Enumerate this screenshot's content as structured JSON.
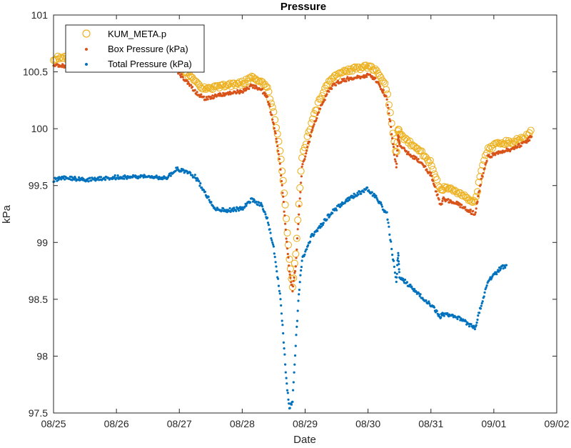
{
  "chart_data": {
    "type": "scatter",
    "title": "Pressure",
    "xlabel": "Date",
    "ylabel": "kPa",
    "x_ticks": [
      "08/25",
      "08/26",
      "08/27",
      "08/28",
      "08/29",
      "08/30",
      "08/31",
      "09/01",
      "09/02"
    ],
    "y_ticks": [
      "97.5",
      "98",
      "98.5",
      "99",
      "99.5",
      "100",
      "100.5",
      "101"
    ],
    "xlim": [
      "08/25 00:00",
      "09/02 00:00"
    ],
    "ylim": [
      97.5,
      101
    ],
    "grid": false,
    "legend_position": "top-left",
    "series": [
      {
        "name": "KUM_META.p",
        "marker": "open-circle",
        "color": "#EDB120",
        "x": [
          "08/25 00:00",
          "08/25 04:48",
          "08/25 12:00",
          "08/25 21:36",
          "08/26 07:12",
          "08/26 13:12",
          "08/26 19:12",
          "08/26 22:48",
          "08/27 02:24",
          "08/27 06:00",
          "08/27 09:36",
          "08/27 13:12",
          "08/27 18:00",
          "08/28 00:00",
          "08/28 03:36",
          "08/28 07:12",
          "08/28 09:36",
          "08/28 12:00",
          "08/28 14:24",
          "08/28 15:36",
          "08/28 16:48",
          "08/28 18:00",
          "08/28 19:12",
          "08/28 20:24",
          "08/28 21:36",
          "08/28 22:48",
          "08/29 02:24",
          "08/29 06:00",
          "08/29 09:36",
          "08/29 14:24",
          "08/29 19:12",
          "08/30 00:00",
          "08/30 03:36",
          "08/30 07:12",
          "08/30 10:48",
          "08/30 11:31",
          "08/30 12:00",
          "08/30 14:24",
          "08/30 19:12",
          "08/31 00:00",
          "08/31 03:36",
          "08/31 04:48",
          "08/31 09:36",
          "08/31 14:24",
          "08/31 16:48",
          "08/31 19:12",
          "08/31 21:36",
          "09/01 02:24",
          "09/01 07:12",
          "09/01 12:00",
          "09/01 14:24"
        ],
        "y": [
          100.62,
          100.62,
          100.6,
          100.6,
          100.6,
          100.58,
          100.6,
          100.58,
          100.5,
          100.42,
          100.35,
          100.36,
          100.38,
          100.4,
          100.45,
          100.42,
          100.35,
          100.15,
          99.8,
          99.55,
          99.2,
          98.85,
          98.6,
          98.9,
          99.35,
          99.75,
          100.05,
          100.28,
          100.43,
          100.5,
          100.53,
          100.55,
          100.5,
          100.35,
          99.75,
          100.02,
          99.95,
          99.9,
          99.82,
          99.7,
          99.45,
          99.48,
          99.45,
          99.38,
          99.35,
          99.62,
          99.82,
          99.88,
          99.88,
          99.93,
          99.98
        ]
      },
      {
        "name": "Box Pressure (kPa)",
        "marker": "dot",
        "color": "#D95319",
        "x": [
          "08/25 00:00",
          "08/25 04:48",
          "08/25 12:00",
          "08/25 21:36",
          "08/26 07:12",
          "08/26 13:12",
          "08/26 19:12",
          "08/26 22:48",
          "08/27 02:24",
          "08/27 06:00",
          "08/27 09:36",
          "08/27 13:12",
          "08/27 18:00",
          "08/28 00:00",
          "08/28 03:36",
          "08/28 07:12",
          "08/28 09:36",
          "08/28 12:00",
          "08/28 14:24",
          "08/28 15:36",
          "08/28 16:48",
          "08/28 18:00",
          "08/28 19:12",
          "08/28 20:24",
          "08/28 21:36",
          "08/28 22:48",
          "08/29 02:24",
          "08/29 06:00",
          "08/29 09:36",
          "08/29 14:24",
          "08/29 19:12",
          "08/30 00:00",
          "08/30 03:36",
          "08/30 07:12",
          "08/30 10:48",
          "08/30 11:31",
          "08/30 12:00",
          "08/30 14:24",
          "08/30 19:12",
          "08/31 00:00",
          "08/31 03:36",
          "08/31 04:48",
          "08/31 09:36",
          "08/31 14:24",
          "08/31 16:48",
          "08/31 19:12",
          "08/31 21:36",
          "09/01 02:24",
          "09/01 07:12",
          "09/01 12:00",
          "09/01 14:24"
        ],
        "y": [
          100.56,
          100.55,
          100.55,
          100.55,
          100.55,
          100.53,
          100.55,
          100.52,
          100.42,
          100.33,
          100.26,
          100.28,
          100.31,
          100.33,
          100.38,
          100.35,
          100.27,
          100.05,
          99.7,
          99.4,
          99.05,
          98.75,
          98.58,
          98.8,
          99.25,
          99.65,
          99.97,
          100.2,
          100.36,
          100.43,
          100.45,
          100.47,
          100.42,
          100.27,
          99.65,
          99.95,
          99.87,
          99.8,
          99.72,
          99.6,
          99.33,
          99.38,
          99.35,
          99.28,
          99.25,
          99.55,
          99.75,
          99.8,
          99.82,
          99.88,
          99.93
        ]
      },
      {
        "name": "Total Pressure (kPa)",
        "marker": "dot",
        "color": "#0072BD",
        "x": [
          "08/25 00:00",
          "08/25 04:48",
          "08/25 12:00",
          "08/25 21:36",
          "08/26 07:12",
          "08/26 13:12",
          "08/26 19:12",
          "08/26 22:48",
          "08/27 02:24",
          "08/27 06:00",
          "08/27 09:36",
          "08/27 13:12",
          "08/27 18:00",
          "08/28 00:00",
          "08/28 03:36",
          "08/28 07:12",
          "08/28 09:36",
          "08/28 12:00",
          "08/28 14:24",
          "08/28 15:36",
          "08/28 16:48",
          "08/28 18:00",
          "08/28 19:12",
          "08/28 20:24",
          "08/28 21:36",
          "08/28 22:48",
          "08/29 02:24",
          "08/29 06:00",
          "08/29 09:36",
          "08/29 14:24",
          "08/29 19:12",
          "08/30 00:00",
          "08/30 03:36",
          "08/30 07:12",
          "08/30 10:48",
          "08/30 11:31",
          "08/30 12:00",
          "08/30 14:24",
          "08/30 19:12",
          "08/31 00:00",
          "08/31 03:36",
          "08/31 04:48",
          "08/31 09:36",
          "08/31 14:24",
          "08/31 16:48",
          "08/31 19:12",
          "08/31 21:36",
          "09/01 02:24",
          "09/01 04:48"
        ],
        "y": [
          99.55,
          99.57,
          99.55,
          99.57,
          99.58,
          99.58,
          99.56,
          99.65,
          99.62,
          99.58,
          99.45,
          99.3,
          99.28,
          99.3,
          99.38,
          99.33,
          99.2,
          98.95,
          98.55,
          98.2,
          97.8,
          97.55,
          97.6,
          98.1,
          98.55,
          98.85,
          99.05,
          99.15,
          99.25,
          99.35,
          99.42,
          99.47,
          99.38,
          99.25,
          98.65,
          98.92,
          98.7,
          98.65,
          98.55,
          98.45,
          98.35,
          98.37,
          98.35,
          98.28,
          98.25,
          98.45,
          98.65,
          98.77,
          98.8
        ]
      }
    ]
  }
}
